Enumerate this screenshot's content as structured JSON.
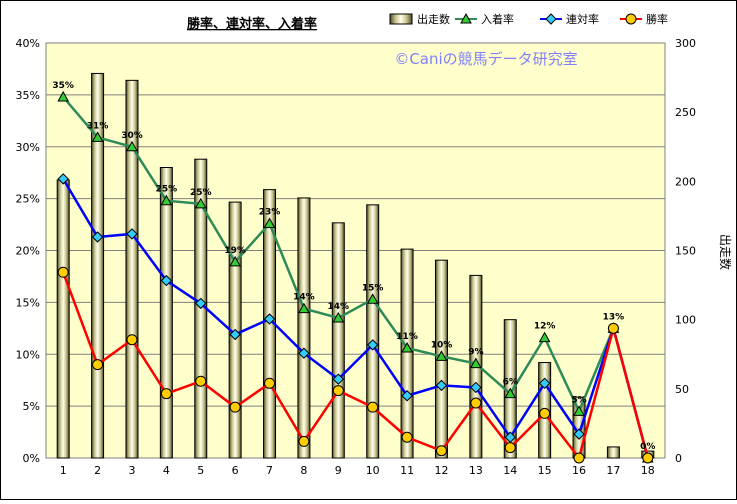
{
  "chart_data": {
    "type": "bar+line",
    "title": "勝率、連対率、入着率",
    "watermark": "©Caniの競馬データ研究室",
    "y2label": "出走数",
    "categories": [
      "1",
      "2",
      "3",
      "4",
      "5",
      "6",
      "7",
      "8",
      "9",
      "10",
      "11",
      "12",
      "13",
      "14",
      "15",
      "16",
      "17",
      "18"
    ],
    "y_left": {
      "min": 0,
      "max": 40,
      "ticks": [
        "0%",
        "5%",
        "10%",
        "15%",
        "20%",
        "25%",
        "30%",
        "35%",
        "40%"
      ]
    },
    "y_right": {
      "min": 0,
      "max": 300,
      "ticks": [
        "0",
        "50",
        "100",
        "150",
        "200",
        "250",
        "300"
      ]
    },
    "bars": {
      "name": "出走数",
      "values": [
        201,
        278,
        273,
        210,
        216,
        185,
        194,
        188,
        170,
        183,
        151,
        143,
        132,
        100,
        69,
        44,
        8,
        5
      ]
    },
    "series": [
      {
        "name": "入着率",
        "color": "#2e8b57",
        "marker": "triangle",
        "values": [
          34.8,
          30.9,
          30.0,
          24.8,
          24.5,
          18.9,
          22.6,
          14.4,
          13.5,
          15.3,
          10.6,
          9.8,
          9.1,
          6.2,
          11.6,
          4.5,
          12.5,
          0.0
        ]
      },
      {
        "name": "連対率",
        "color": "#0000ff",
        "marker": "diamond",
        "values": [
          26.9,
          21.3,
          21.6,
          17.1,
          14.9,
          11.9,
          13.4,
          10.1,
          7.6,
          10.9,
          6.0,
          7.0,
          6.8,
          2.0,
          7.2,
          2.3,
          12.5,
          0.0
        ]
      },
      {
        "name": "勝率",
        "color": "#ff0000",
        "marker": "circle",
        "values": [
          17.9,
          9.0,
          11.4,
          6.2,
          7.4,
          4.9,
          7.2,
          1.6,
          6.5,
          4.9,
          2.0,
          0.7,
          5.3,
          1.0,
          4.3,
          0.0,
          12.5,
          0.0
        ]
      }
    ],
    "data_labels": [
      {
        "index": 0,
        "text": "35%",
        "value": 34.8
      },
      {
        "index": 1,
        "text": "31%",
        "value": 30.9
      },
      {
        "index": 2,
        "text": "30%",
        "value": 30.0
      },
      {
        "index": 3,
        "text": "25%",
        "value": 24.8
      },
      {
        "index": 4,
        "text": "25%",
        "value": 24.5
      },
      {
        "index": 5,
        "text": "19%",
        "value": 18.9
      },
      {
        "index": 6,
        "text": "23%",
        "value": 22.6
      },
      {
        "index": 7,
        "text": "14%",
        "value": 14.4
      },
      {
        "index": 8,
        "text": "14%",
        "value": 13.5
      },
      {
        "index": 9,
        "text": "15%",
        "value": 15.3
      },
      {
        "index": 10,
        "text": "11%",
        "value": 10.6
      },
      {
        "index": 11,
        "text": "10%",
        "value": 9.8
      },
      {
        "index": 12,
        "text": "9%",
        "value": 9.1
      },
      {
        "index": 13,
        "text": "6%",
        "value": 6.2
      },
      {
        "index": 14,
        "text": "12%",
        "value": 11.6
      },
      {
        "index": 15,
        "text": "5%",
        "value": 4.5
      },
      {
        "index": 16,
        "text": "13%",
        "value": 12.5
      },
      {
        "index": 17,
        "text": "0%",
        "value": 0.0
      }
    ],
    "legend_position": "top-right",
    "grid": "horizontal",
    "plot_background": "#ffffcc"
  }
}
